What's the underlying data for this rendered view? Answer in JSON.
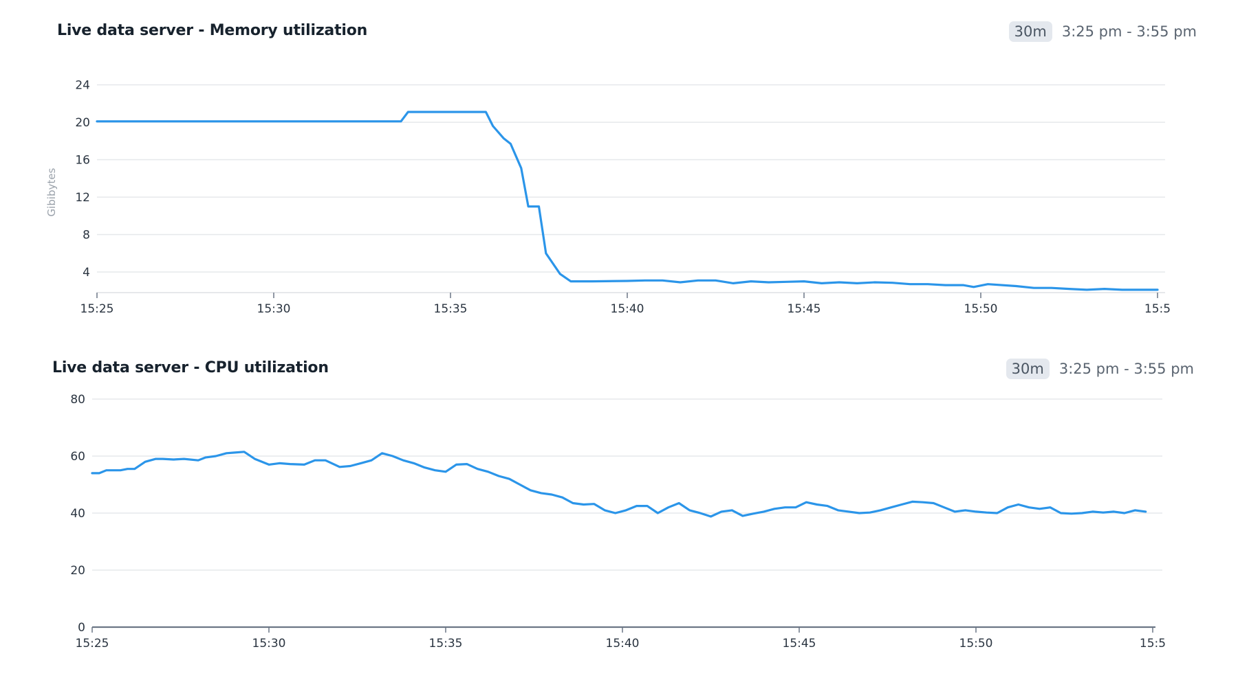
{
  "panels": [
    {
      "title": "Live data server - Memory utilization",
      "range_badge": "30m",
      "range_text": "3:25 pm - 3:55 pm"
    },
    {
      "title": "Live data server - CPU utilization",
      "range_badge": "30m",
      "range_text": "3:25 pm - 3:55 pm"
    }
  ],
  "colors": {
    "line": "#2b95e9",
    "grid": "#e6e8eb",
    "axis": "#6b7685",
    "badge_bg": "#e4e8ee"
  },
  "chart_data": [
    {
      "type": "line",
      "title": "Live data server - Memory utilization",
      "xlabel": "",
      "ylabel": "Gibibytes",
      "x_tick_labels": [
        "15:25",
        "15:30",
        "15:35",
        "15:40",
        "15:45",
        "15:50",
        "15:5"
      ],
      "y_ticks": [
        4,
        8,
        12,
        16,
        20,
        24
      ],
      "ylim": [
        1.8,
        24
      ],
      "xlim_minutes": [
        0,
        30
      ],
      "grid": true,
      "legend": false,
      "series": [
        {
          "name": "Memory",
          "x_minutes": [
            0,
            1,
            2,
            3,
            4,
            5,
            6,
            7,
            8,
            8.6,
            8.8,
            9.5,
            10,
            10.6,
            11.0,
            11.2,
            11.5,
            11.7,
            12.0,
            12.2,
            12.5,
            12.7,
            13.1,
            13.4,
            13.6,
            14,
            15,
            15.5,
            16,
            16.5,
            17,
            17.5,
            18,
            18.5,
            19,
            19.5,
            20,
            20.5,
            21,
            21.5,
            22,
            22.5,
            23,
            23.5,
            24,
            24.5,
            24.8,
            25.2,
            26,
            26.5,
            27,
            27.5,
            28,
            28.5,
            29,
            30
          ],
          "values": [
            20.1,
            20.1,
            20.1,
            20.1,
            20.1,
            20.1,
            20.1,
            20.1,
            20.1,
            20.1,
            21.1,
            21.1,
            21.1,
            21.1,
            21.1,
            19.6,
            18.3,
            17.7,
            15.1,
            11.0,
            11.0,
            6.0,
            3.8,
            3.0,
            3.0,
            3.0,
            3.05,
            3.1,
            3.1,
            2.9,
            3.1,
            3.1,
            2.8,
            3.0,
            2.9,
            2.95,
            3.0,
            2.8,
            2.9,
            2.8,
            2.9,
            2.85,
            2.7,
            2.7,
            2.6,
            2.6,
            2.4,
            2.7,
            2.5,
            2.3,
            2.3,
            2.2,
            2.1,
            2.2,
            2.1,
            2.1
          ]
        }
      ]
    },
    {
      "type": "line",
      "title": "Live data server - CPU utilization",
      "xlabel": "",
      "ylabel": "",
      "x_tick_labels": [
        "15:25",
        "15:30",
        "15:35",
        "15:40",
        "15:45",
        "15:50",
        "15:5"
      ],
      "y_ticks": [
        0,
        20,
        40,
        60,
        80
      ],
      "ylim": [
        0,
        80
      ],
      "xlim_minutes": [
        0,
        29.8
      ],
      "grid": true,
      "legend": false,
      "series": [
        {
          "name": "CPU",
          "x_minutes": [
            0,
            0.2,
            0.4,
            0.8,
            1.0,
            1.2,
            1.5,
            1.8,
            2.0,
            2.3,
            2.6,
            3.0,
            3.2,
            3.5,
            3.8,
            4.0,
            4.3,
            4.6,
            5.0,
            5.3,
            5.6,
            6.0,
            6.3,
            6.6,
            7.0,
            7.3,
            7.6,
            7.9,
            8.2,
            8.5,
            8.8,
            9.1,
            9.4,
            9.7,
            10.0,
            10.3,
            10.6,
            10.9,
            11.2,
            11.5,
            11.8,
            12.1,
            12.4,
            12.7,
            13.0,
            13.3,
            13.6,
            13.9,
            14.2,
            14.5,
            14.8,
            15.1,
            15.4,
            15.7,
            16.0,
            16.3,
            16.6,
            16.9,
            17.2,
            17.5,
            17.8,
            18.1,
            18.4,
            18.7,
            19.0,
            19.3,
            19.6,
            19.9,
            20.2,
            20.5,
            20.8,
            21.1,
            21.4,
            21.7,
            22.0,
            22.3,
            22.6,
            22.9,
            23.2,
            23.5,
            23.8,
            24.1,
            24.4,
            24.7,
            25.0,
            25.3,
            25.6,
            25.9,
            26.2,
            26.5,
            26.8,
            27.1,
            27.4,
            27.7,
            28.0,
            28.3,
            28.6,
            28.9,
            29.2,
            29.5,
            29.8
          ],
          "values": [
            54,
            54,
            55,
            55,
            55.5,
            55.5,
            58,
            59,
            59,
            58.8,
            59,
            58.5,
            59.5,
            60,
            61,
            61.2,
            61.5,
            59,
            57,
            57.5,
            57.2,
            57,
            58.5,
            58.5,
            56.2,
            56.5,
            57.5,
            58.5,
            61,
            60,
            58.5,
            57.5,
            56,
            55,
            54.5,
            57,
            57.2,
            55.5,
            54.5,
            53,
            52,
            50,
            48,
            47,
            46.5,
            45.5,
            43.5,
            43,
            43.2,
            41,
            40,
            41,
            42.5,
            42.5,
            40,
            42,
            43.5,
            41,
            40,
            38.8,
            40.5,
            41,
            39,
            39.8,
            40.5,
            41.5,
            42,
            42,
            43.8,
            43,
            42.5,
            41,
            40.5,
            40,
            40.2,
            41,
            42,
            43,
            44,
            43.8,
            43.5,
            42,
            40.5,
            41,
            40.5,
            40.2,
            40,
            42,
            43,
            42,
            41.5,
            42,
            40,
            39.8,
            40,
            40.5,
            40.2,
            40.5,
            40,
            41,
            40.5
          ]
        }
      ]
    }
  ]
}
